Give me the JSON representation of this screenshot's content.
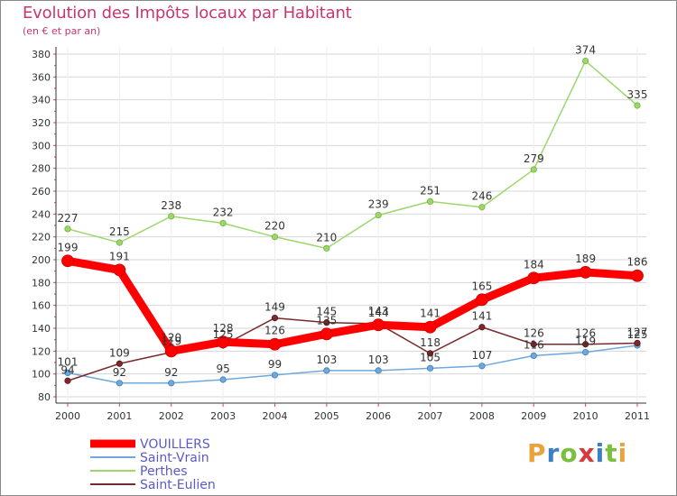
{
  "chart_data": {
    "type": "line",
    "title": "Evolution des Impôts locaux par Habitant",
    "subtitle": "(en € et par an)",
    "xlabel": "",
    "ylabel": "",
    "ylim": [
      80,
      380
    ],
    "yticks": [
      80,
      100,
      120,
      140,
      160,
      180,
      200,
      220,
      240,
      260,
      280,
      300,
      320,
      340,
      360,
      380
    ],
    "grid": "horizontal",
    "legend_position": "bottom-left",
    "categories": [
      "2000",
      "2001",
      "2002",
      "2003",
      "2004",
      "2005",
      "2006",
      "2007",
      "2008",
      "2009",
      "2010",
      "2011"
    ],
    "series": [
      {
        "name": "VOUILLERS",
        "color": "#ff0000",
        "values": [
          199,
          191,
          120,
          128,
          126,
          135,
          143,
          141,
          165,
          184,
          189,
          186
        ],
        "labels": [
          "199",
          "191",
          "120",
          "128",
          "126",
          "135",
          "143",
          "141",
          "165",
          "184",
          "189",
          "186"
        ]
      },
      {
        "name": "Saint-Vrain",
        "color": "#6fa8dc",
        "values": [
          101,
          92,
          92,
          95,
          99,
          103,
          103,
          105,
          107,
          116,
          119,
          125
        ],
        "labels": [
          "101",
          "92",
          "92",
          "95",
          "99",
          "103",
          "103",
          "105",
          "107",
          "116",
          "119",
          "125"
        ]
      },
      {
        "name": "Perthes",
        "color": "#9ed66b",
        "values": [
          227,
          215,
          238,
          232,
          220,
          210,
          239,
          251,
          246,
          279,
          374,
          335
        ],
        "labels": [
          "227",
          "215",
          "238",
          "232",
          "220",
          "210",
          "239",
          "251",
          "246",
          "279",
          "374",
          "335"
        ]
      },
      {
        "name": "Saint-Eulien",
        "color": "#7a2a2a",
        "values": [
          94,
          109,
          119,
          125,
          149,
          145,
          144,
          118,
          141,
          126,
          126,
          127
        ],
        "labels": [
          "94",
          "109",
          "119",
          "125",
          "149",
          "145",
          "144",
          "118",
          "141",
          "126",
          "126",
          "127"
        ]
      }
    ]
  },
  "logo": {
    "letters": [
      "P",
      "r",
      "o",
      "x",
      "i",
      "t",
      "i"
    ],
    "colors": [
      "#e8a33a",
      "#3b7fc4",
      "#7bbf3f",
      "#d63a3a",
      "#3b7fc4",
      "#7bbf3f",
      "#e8a33a"
    ]
  }
}
